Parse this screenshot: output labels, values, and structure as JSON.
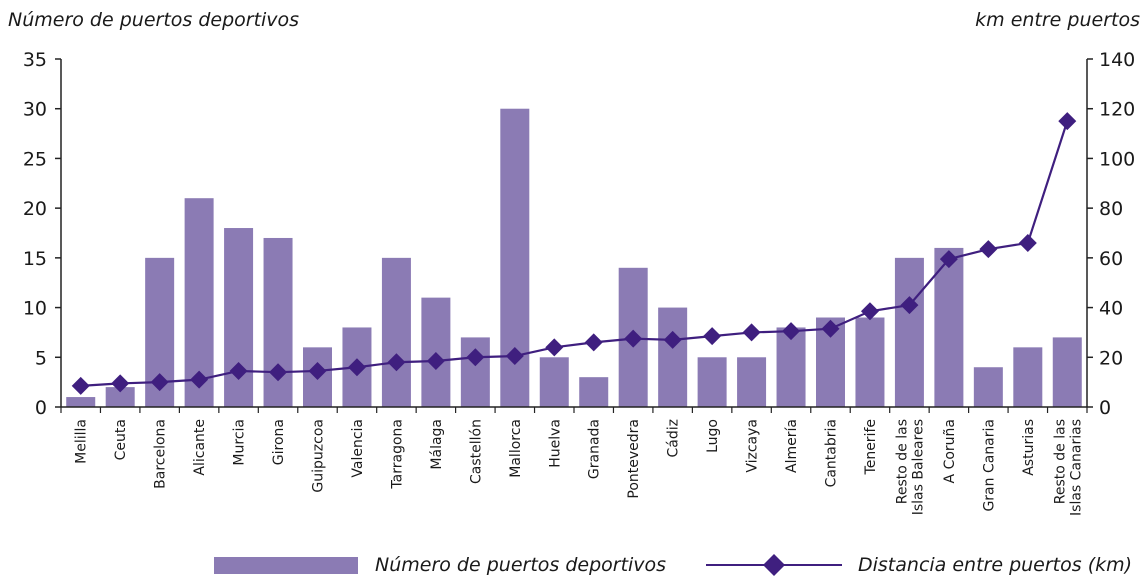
{
  "chart_data": {
    "type": "bar-line",
    "categories": [
      "Melilla",
      "Ceuta",
      "Barcelona",
      "Alicante",
      "Murcia",
      "Girona",
      "Guipuzcoa",
      "Valencia",
      "Tarragona",
      "Málaga",
      "Castellón",
      "Mallorca",
      "Huelva",
      "Granada",
      "Pontevedra",
      "Cádiz",
      "Lugo",
      "Vizcaya",
      "Almería",
      "Cantabria",
      "Tenerife",
      "Resto de las\nIslas Baleares",
      "A Coruña",
      "Gran Canaria",
      "Asturias",
      "Resto de las\nIslas Canarias"
    ],
    "series": [
      {
        "name": "Número de puertos deportivos",
        "type": "bar",
        "axis": "left",
        "color": "#8b7bb4",
        "values": [
          1,
          2,
          15,
          21,
          18,
          17,
          6,
          8,
          15,
          11,
          7,
          30,
          5,
          3,
          14,
          10,
          5,
          5,
          8,
          9,
          9,
          15,
          16,
          4,
          6,
          7
        ]
      },
      {
        "name": "Distancia entre puertos (km)",
        "type": "line",
        "axis": "right",
        "color": "#3f1f7f",
        "values": [
          8.5,
          9.5,
          10,
          11,
          14.5,
          14,
          14.5,
          16,
          18,
          18.5,
          20,
          20.5,
          24,
          26,
          27.5,
          27,
          28.5,
          30,
          30.5,
          31.5,
          38.5,
          41,
          59.5,
          63.5,
          66,
          115
        ]
      }
    ],
    "y_left": {
      "label": "Número de puertos deportivos",
      "lim": [
        0,
        35
      ],
      "ticks": [
        0,
        5,
        10,
        15,
        20,
        25,
        30,
        35
      ]
    },
    "y_right": {
      "label": "km entre puertos",
      "lim": [
        0,
        140
      ],
      "ticks": [
        0,
        20,
        40,
        60,
        80,
        100,
        120,
        140
      ]
    },
    "legend": {
      "placement": "bottom"
    },
    "grid": false
  }
}
